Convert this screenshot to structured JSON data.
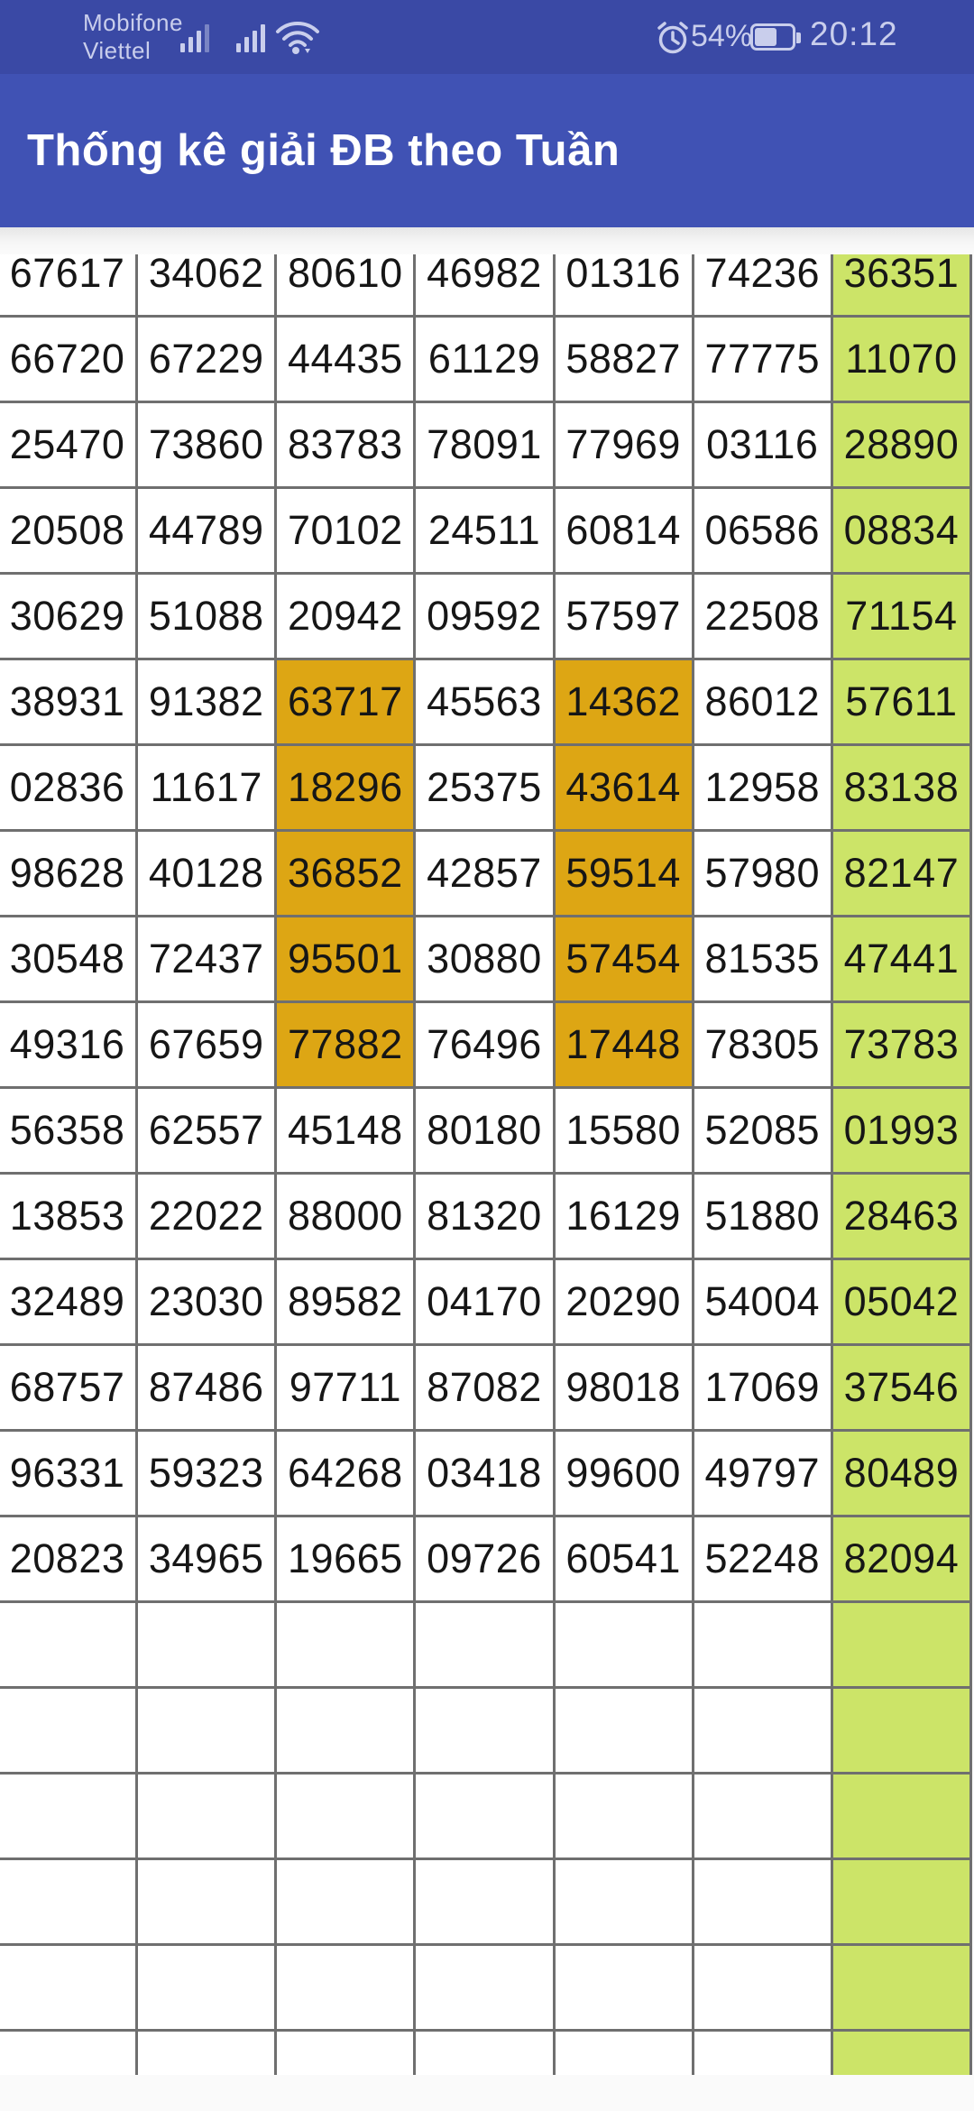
{
  "colors": {
    "status-bar-bg": "#3A49A5",
    "app-bar-bg": "#4052B4",
    "status-text": "#C9CEEC",
    "title-text": "#FFFFFF",
    "page-bg": "#FAFAFA",
    "cell-bg": "#FFFFFF",
    "green-col-bg": "#CCE468",
    "orange-cell-bg": "#DDA614",
    "border-color": "#6F6F6F",
    "cell-text": "#161616"
  },
  "status_bar": {
    "carrier_line1": "Mobifone",
    "carrier_line2": "Viettel",
    "battery_percent": "54%",
    "time": "20:12"
  },
  "header": {
    "title": "Thống kê giải ĐB theo Tuần"
  },
  "table": {
    "columns": 7,
    "green_column": 7,
    "rows": [
      [
        "67617",
        "34062",
        "80610",
        "46982",
        "01316",
        "74236",
        "36351"
      ],
      [
        "66720",
        "67229",
        "44435",
        "61129",
        "58827",
        "77775",
        "11070"
      ],
      [
        "25470",
        "73860",
        "83783",
        "78091",
        "77969",
        "03116",
        "28890"
      ],
      [
        "20508",
        "44789",
        "70102",
        "24511",
        "60814",
        "06586",
        "08834"
      ],
      [
        "30629",
        "51088",
        "20942",
        "09592",
        "57597",
        "22508",
        "71154"
      ],
      [
        "38931",
        "91382",
        "63717",
        "45563",
        "14362",
        "86012",
        "57611"
      ],
      [
        "02836",
        "11617",
        "18296",
        "25375",
        "43614",
        "12958",
        "83138"
      ],
      [
        "98628",
        "40128",
        "36852",
        "42857",
        "59514",
        "57980",
        "82147"
      ],
      [
        "30548",
        "72437",
        "95501",
        "30880",
        "57454",
        "81535",
        "47441"
      ],
      [
        "49316",
        "67659",
        "77882",
        "76496",
        "17448",
        "78305",
        "73783"
      ],
      [
        "56358",
        "62557",
        "45148",
        "80180",
        "15580",
        "52085",
        "01993"
      ],
      [
        "13853",
        "22022",
        "88000",
        "81320",
        "16129",
        "51880",
        "28463"
      ],
      [
        "32489",
        "23030",
        "89582",
        "04170",
        "20290",
        "54004",
        "05042"
      ],
      [
        "68757",
        "87486",
        "97711",
        "87082",
        "98018",
        "17069",
        "37546"
      ],
      [
        "96331",
        "59323",
        "64268",
        "03418",
        "99600",
        "49797",
        "80489"
      ],
      [
        "20823",
        "34965",
        "19665",
        "09726",
        "60541",
        "52248",
        "82094"
      ]
    ],
    "orange_cells": [
      [
        6,
        3
      ],
      [
        6,
        5
      ],
      [
        7,
        3
      ],
      [
        7,
        5
      ],
      [
        8,
        3
      ],
      [
        8,
        5
      ],
      [
        9,
        3
      ],
      [
        9,
        5
      ],
      [
        10,
        3
      ],
      [
        10,
        5
      ]
    ],
    "empty_rows": 6
  }
}
